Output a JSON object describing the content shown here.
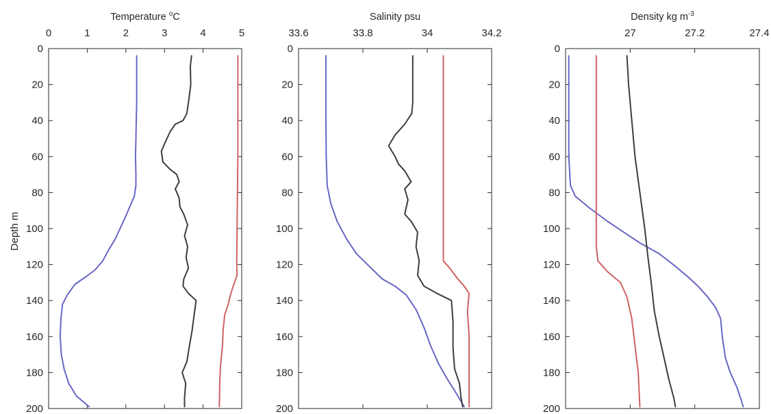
{
  "figure": {
    "ylabel": "Depth m"
  },
  "chart_data": [
    {
      "type": "line",
      "title_text": "Temperature ",
      "title_sup": "o",
      "title_unit": "C",
      "xlim": [
        0,
        5
      ],
      "ylim": [
        0,
        200
      ],
      "y_reversed": true,
      "x_axis_position": "top",
      "xticks": [
        0,
        1,
        2,
        3,
        4,
        5
      ],
      "xtick_labels": [
        "0",
        "1",
        "2",
        "3",
        "4",
        "5"
      ],
      "yticks": [
        0,
        20,
        40,
        60,
        80,
        100,
        120,
        140,
        160,
        180,
        200
      ],
      "ytick_labels": [
        "0",
        "20",
        "40",
        "60",
        "80",
        "100",
        "120",
        "140",
        "160",
        "180",
        "200"
      ],
      "ylabel": "Depth m",
      "grid": false,
      "series": [
        {
          "color": "#6666c4",
          "points": [
            [
              2.28,
              4
            ],
            [
              2.28,
              10
            ],
            [
              2.28,
              20
            ],
            [
              2.28,
              30
            ],
            [
              2.27,
              40
            ],
            [
              2.26,
              50
            ],
            [
              2.25,
              60
            ],
            [
              2.26,
              70
            ],
            [
              2.26,
              76
            ],
            [
              2.22,
              82
            ],
            [
              2.1,
              88
            ],
            [
              1.98,
              94
            ],
            [
              1.85,
              100
            ],
            [
              1.72,
              106
            ],
            [
              1.55,
              112
            ],
            [
              1.4,
              118
            ],
            [
              1.2,
              123
            ],
            [
              0.95,
              127
            ],
            [
              0.68,
              131
            ],
            [
              0.48,
              137
            ],
            [
              0.36,
              142
            ],
            [
              0.32,
              150
            ],
            [
              0.3,
              160
            ],
            [
              0.33,
              170
            ],
            [
              0.4,
              178
            ],
            [
              0.52,
              186
            ],
            [
              0.72,
              193
            ],
            [
              1.05,
              199
            ]
          ]
        },
        {
          "color": "#3c3c3c",
          "points": [
            [
              3.7,
              4
            ],
            [
              3.67,
              10
            ],
            [
              3.68,
              20
            ],
            [
              3.62,
              30
            ],
            [
              3.58,
              36
            ],
            [
              3.48,
              40
            ],
            [
              3.28,
              42
            ],
            [
              3.15,
              46
            ],
            [
              3.02,
              52
            ],
            [
              2.92,
              57
            ],
            [
              2.96,
              63
            ],
            [
              3.14,
              67
            ],
            [
              3.32,
              70
            ],
            [
              3.38,
              74
            ],
            [
              3.28,
              78
            ],
            [
              3.38,
              83
            ],
            [
              3.4,
              88
            ],
            [
              3.5,
              92
            ],
            [
              3.6,
              98
            ],
            [
              3.52,
              104
            ],
            [
              3.6,
              110
            ],
            [
              3.56,
              116
            ],
            [
              3.62,
              122
            ],
            [
              3.5,
              128
            ],
            [
              3.48,
              132
            ],
            [
              3.62,
              136
            ],
            [
              3.82,
              140
            ],
            [
              3.78,
              146
            ],
            [
              3.72,
              156
            ],
            [
              3.64,
              166
            ],
            [
              3.58,
              174
            ],
            [
              3.46,
              180
            ],
            [
              3.55,
              186
            ],
            [
              3.52,
              194
            ],
            [
              3.52,
              199
            ]
          ]
        },
        {
          "color": "#d06262",
          "points": [
            [
              4.9,
              4
            ],
            [
              4.9,
              20
            ],
            [
              4.9,
              40
            ],
            [
              4.9,
              60
            ],
            [
              4.89,
              80
            ],
            [
              4.88,
              100
            ],
            [
              4.87,
              120
            ],
            [
              4.88,
              126
            ],
            [
              4.78,
              132
            ],
            [
              4.72,
              136
            ],
            [
              4.65,
              142
            ],
            [
              4.56,
              148
            ],
            [
              4.52,
              156
            ],
            [
              4.5,
              166
            ],
            [
              4.45,
              176
            ],
            [
              4.43,
              186
            ],
            [
              4.42,
              199
            ]
          ]
        }
      ]
    },
    {
      "type": "line",
      "title_text": "Salinity psu",
      "xlim": [
        33.6,
        34.2
      ],
      "ylim": [
        0,
        200
      ],
      "y_reversed": true,
      "x_axis_position": "top",
      "xticks": [
        33.6,
        33.8,
        34,
        34.2
      ],
      "xtick_labels": [
        "33.6",
        "33.8",
        "34",
        "34.2"
      ],
      "yticks": [
        0,
        20,
        40,
        60,
        80,
        100,
        120,
        140,
        160,
        180,
        200
      ],
      "ytick_labels": [
        "0",
        "20",
        "40",
        "60",
        "80",
        "100",
        "120",
        "140",
        "160",
        "180",
        "200"
      ],
      "grid": false,
      "series": [
        {
          "color": "#6666c4",
          "points": [
            [
              33.685,
              4
            ],
            [
              33.685,
              20
            ],
            [
              33.685,
              40
            ],
            [
              33.686,
              60
            ],
            [
              33.689,
              76
            ],
            [
              33.7,
              86
            ],
            [
              33.72,
              96
            ],
            [
              33.75,
              106
            ],
            [
              33.78,
              114
            ],
            [
              33.82,
              121
            ],
            [
              33.86,
              128
            ],
            [
              33.9,
              132
            ],
            [
              33.935,
              137
            ],
            [
              33.965,
              145
            ],
            [
              33.99,
              155
            ],
            [
              34.01,
              165
            ],
            [
              34.035,
              175
            ],
            [
              34.06,
              183
            ],
            [
              34.085,
              190
            ],
            [
              34.105,
              196
            ],
            [
              34.115,
              199
            ]
          ]
        },
        {
          "color": "#3c3c3c",
          "points": [
            [
              33.955,
              4
            ],
            [
              33.955,
              20
            ],
            [
              33.955,
              30
            ],
            [
              33.952,
              36
            ],
            [
              33.93,
              42
            ],
            [
              33.9,
              48
            ],
            [
              33.88,
              54
            ],
            [
              33.9,
              60
            ],
            [
              33.91,
              64
            ],
            [
              33.93,
              68
            ],
            [
              33.95,
              74
            ],
            [
              33.93,
              78
            ],
            [
              33.94,
              84
            ],
            [
              33.93,
              92
            ],
            [
              33.95,
              96
            ],
            [
              33.97,
              102
            ],
            [
              33.965,
              110
            ],
            [
              33.975,
              118
            ],
            [
              33.97,
              126
            ],
            [
              33.99,
              132
            ],
            [
              34.03,
              136
            ],
            [
              34.075,
              140
            ],
            [
              34.08,
              152
            ],
            [
              34.08,
              166
            ],
            [
              34.085,
              178
            ],
            [
              34.1,
              186
            ],
            [
              34.105,
              194
            ],
            [
              34.11,
              199
            ]
          ]
        },
        {
          "color": "#d06262",
          "points": [
            [
              34.05,
              4
            ],
            [
              34.05,
              20
            ],
            [
              34.05,
              40
            ],
            [
              34.05,
              60
            ],
            [
              34.05,
              80
            ],
            [
              34.05,
              100
            ],
            [
              34.05,
              118
            ],
            [
              34.07,
              122
            ],
            [
              34.095,
              128
            ],
            [
              34.115,
              132
            ],
            [
              34.13,
              136
            ],
            [
              34.125,
              146
            ],
            [
              34.13,
              160
            ],
            [
              34.13,
              180
            ],
            [
              34.13,
              199
            ]
          ]
        }
      ]
    },
    {
      "type": "line",
      "title_text": "Density kg m",
      "title_sup": "-3",
      "xlim": [
        26.8,
        27.4
      ],
      "ylim": [
        0,
        200
      ],
      "y_reversed": true,
      "x_axis_position": "top",
      "xticks": [
        27,
        27.2,
        27.4
      ],
      "xtick_labels": [
        "27",
        "27.2",
        "27.4"
      ],
      "yticks": [
        0,
        20,
        40,
        60,
        80,
        100,
        120,
        140,
        160,
        180,
        200
      ],
      "ytick_labels": [
        "0",
        "20",
        "40",
        "60",
        "80",
        "100",
        "120",
        "140",
        "160",
        "180",
        "200"
      ],
      "grid": false,
      "series": [
        {
          "color": "#6666c4",
          "points": [
            [
              26.81,
              4
            ],
            [
              26.81,
              30
            ],
            [
              26.81,
              60
            ],
            [
              26.815,
              76
            ],
            [
              26.83,
              82
            ],
            [
              26.87,
              88
            ],
            [
              26.93,
              96
            ],
            [
              26.98,
              102
            ],
            [
              27.03,
              108
            ],
            [
              27.09,
              114
            ],
            [
              27.14,
              121
            ],
            [
              27.18,
              127
            ],
            [
              27.21,
              132
            ],
            [
              27.24,
              138
            ],
            [
              27.265,
              144
            ],
            [
              27.28,
              150
            ],
            [
              27.285,
              160
            ],
            [
              27.295,
              172
            ],
            [
              27.31,
              180
            ],
            [
              27.33,
              188
            ],
            [
              27.345,
              196
            ],
            [
              27.35,
              199
            ]
          ]
        },
        {
          "color": "#3c3c3c",
          "points": [
            [
              26.99,
              4
            ],
            [
              26.995,
              20
            ],
            [
              27.005,
              40
            ],
            [
              27.015,
              60
            ],
            [
              27.03,
              80
            ],
            [
              27.045,
              100
            ],
            [
              27.055,
              116
            ],
            [
              27.065,
              130
            ],
            [
              27.075,
              146
            ],
            [
              27.09,
              160
            ],
            [
              27.105,
              172
            ],
            [
              27.12,
              184
            ],
            [
              27.135,
              194
            ],
            [
              27.14,
              199
            ]
          ]
        },
        {
          "color": "#d06262",
          "points": [
            [
              26.895,
              4
            ],
            [
              26.895,
              30
            ],
            [
              26.895,
              60
            ],
            [
              26.895,
              90
            ],
            [
              26.895,
              110
            ],
            [
              26.9,
              118
            ],
            [
              26.93,
              124
            ],
            [
              26.97,
              130
            ],
            [
              26.99,
              138
            ],
            [
              27.005,
              150
            ],
            [
              27.015,
              165
            ],
            [
              27.025,
              180
            ],
            [
              27.03,
              199
            ]
          ]
        }
      ]
    }
  ]
}
